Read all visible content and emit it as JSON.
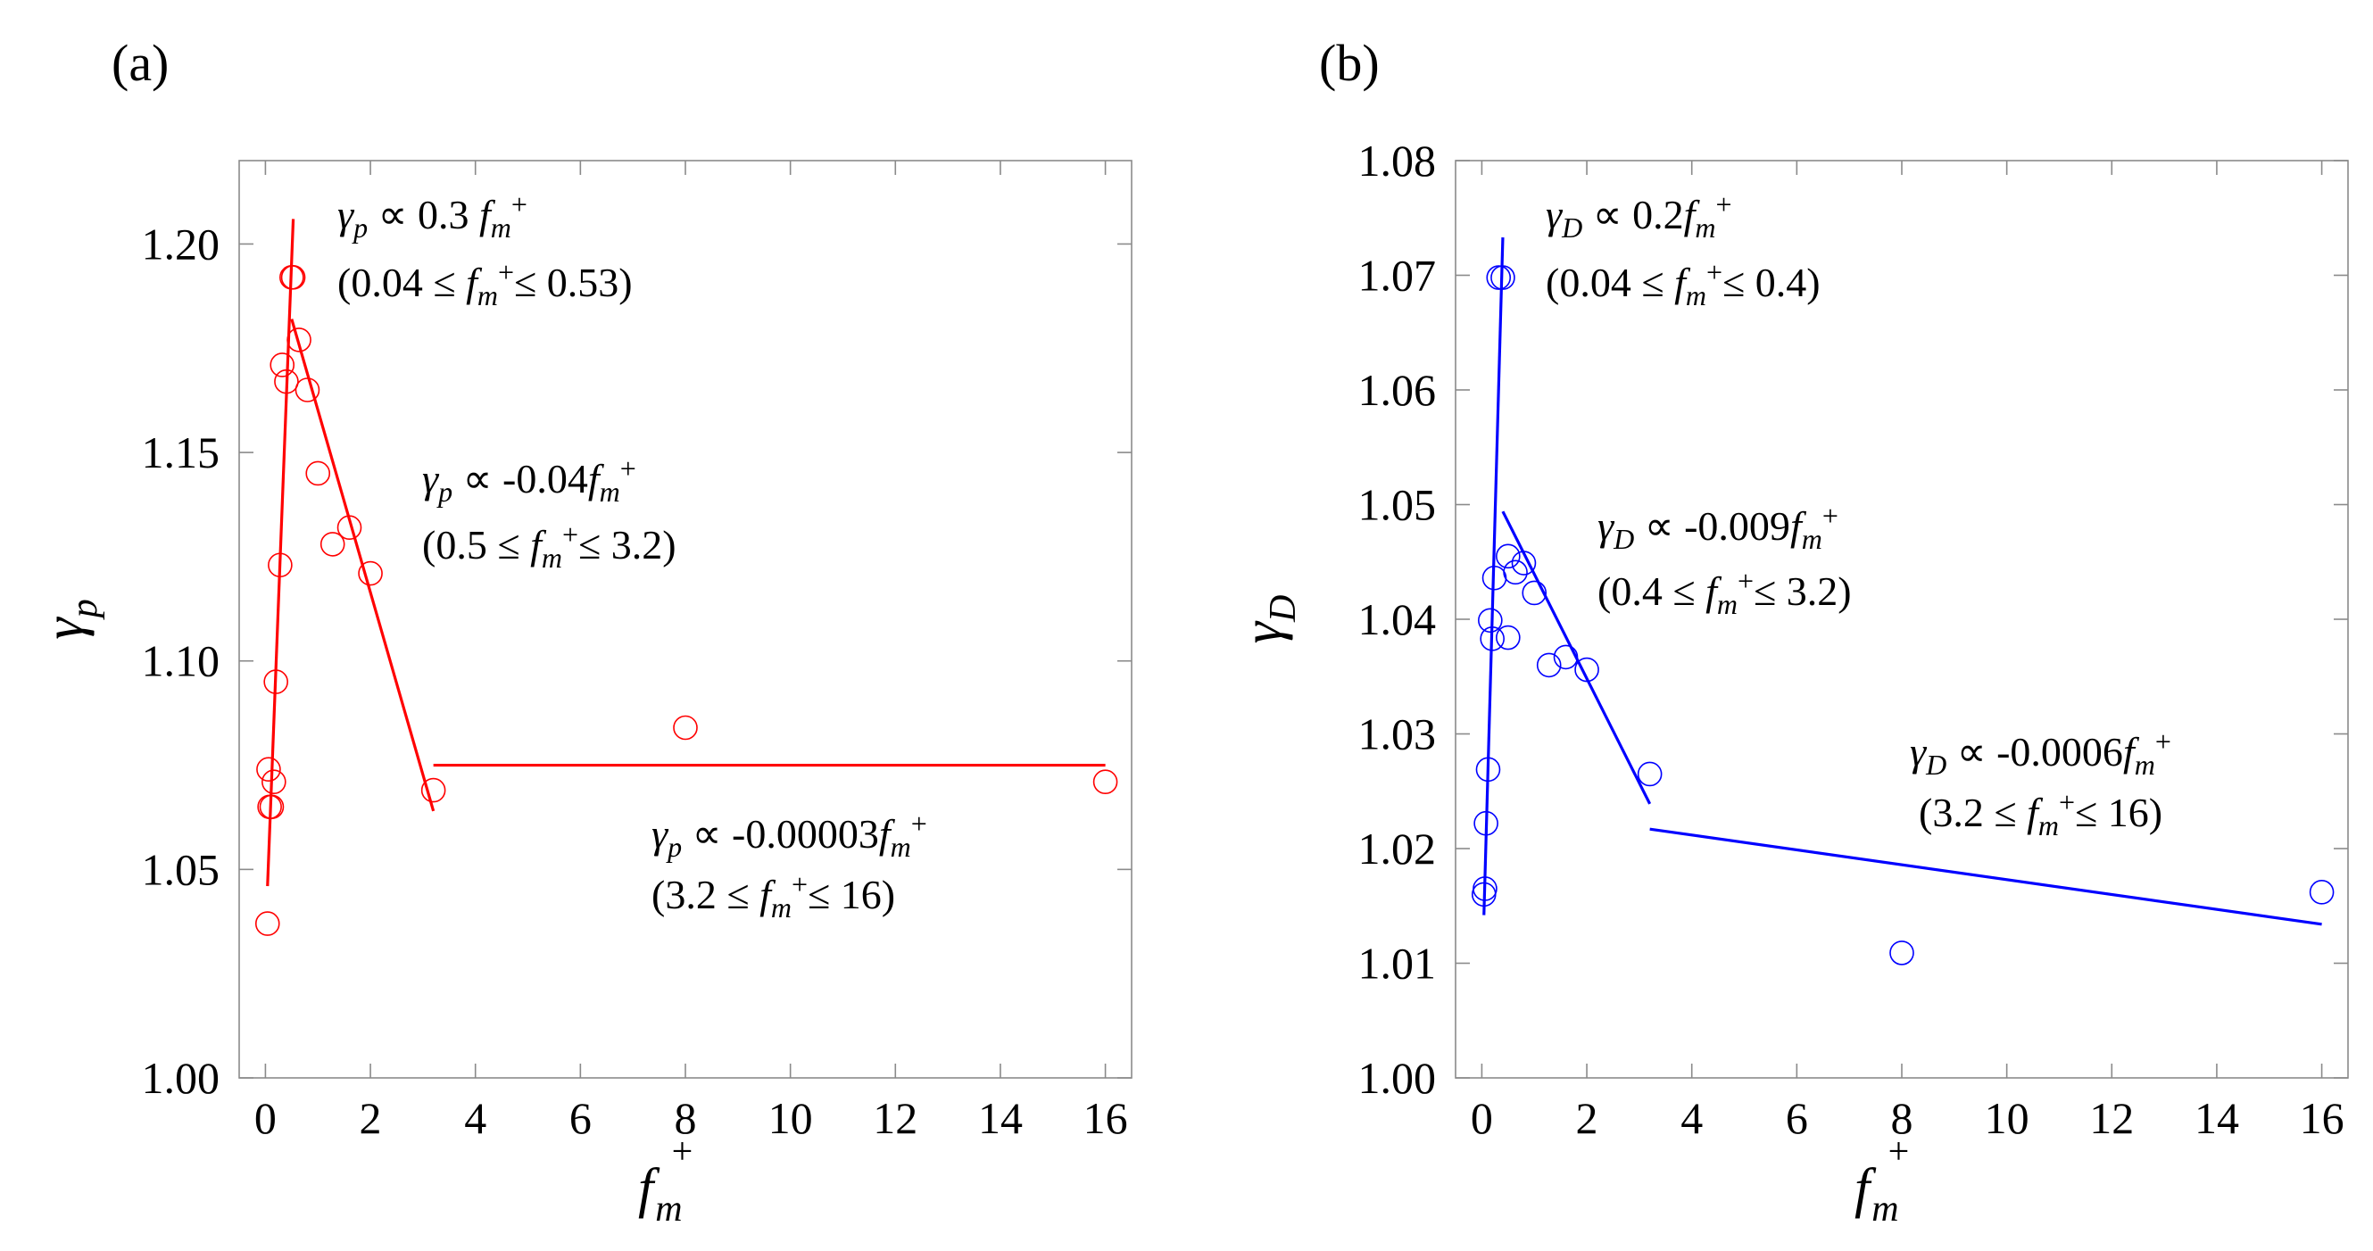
{
  "chart_data": [
    {
      "type": "scatter",
      "panel_label": "(a)",
      "color": "#ff0000",
      "xlabel": "f_m^+",
      "ylabel": "γ_p",
      "xlim": [
        -0.5,
        16.5
      ],
      "ylim": [
        1.0,
        1.22
      ],
      "xticks": [
        0,
        2,
        4,
        6,
        8,
        10,
        12,
        14,
        16
      ],
      "yticks": [
        1.0,
        1.05,
        1.1,
        1.15,
        1.2
      ],
      "ytick_labels": [
        "1.00",
        "1.05",
        "1.10",
        "1.15",
        "1.20"
      ],
      "points": [
        {
          "x": 0.04,
          "y": 1.037
        },
        {
          "x": 0.06,
          "y": 1.074
        },
        {
          "x": 0.08,
          "y": 1.065
        },
        {
          "x": 0.12,
          "y": 1.065
        },
        {
          "x": 0.16,
          "y": 1.071
        },
        {
          "x": 0.2,
          "y": 1.095
        },
        {
          "x": 0.28,
          "y": 1.123
        },
        {
          "x": 0.32,
          "y": 1.171
        },
        {
          "x": 0.4,
          "y": 1.167
        },
        {
          "x": 0.5,
          "y": 1.192
        },
        {
          "x": 0.53,
          "y": 1.192
        },
        {
          "x": 0.64,
          "y": 1.177
        },
        {
          "x": 0.8,
          "y": 1.165
        },
        {
          "x": 1.0,
          "y": 1.145
        },
        {
          "x": 1.28,
          "y": 1.128
        },
        {
          "x": 1.6,
          "y": 1.132
        },
        {
          "x": 2.0,
          "y": 1.121
        },
        {
          "x": 3.2,
          "y": 1.069
        },
        {
          "x": 8.0,
          "y": 1.084
        },
        {
          "x": 16.0,
          "y": 1.071
        }
      ],
      "fit_lines": [
        {
          "x": [
            0.04,
            0.53
          ],
          "y": [
            1.046,
            1.206
          ]
        },
        {
          "x": [
            0.5,
            3.2
          ],
          "y": [
            1.182,
            1.064
          ]
        },
        {
          "x": [
            3.2,
            16.0
          ],
          "y": [
            1.075,
            1.075
          ]
        }
      ],
      "annotations": [
        {
          "formula": "γp ∝ 0.3fm+",
          "range": "(0.04 ≤ fm+ ≤ 0.53)"
        },
        {
          "formula": "γp ∝ -0.04fm+",
          "range": "(0.5 ≤ fm+ ≤ 3.2)"
        },
        {
          "formula": "γp ∝ -0.00003fm+",
          "range": "(3.2 ≤ fm+ ≤ 16)"
        }
      ]
    },
    {
      "type": "scatter",
      "panel_label": "(b)",
      "color": "#0000ff",
      "xlabel": "f_m^+",
      "ylabel": "γ_D",
      "xlim": [
        -0.5,
        16.5
      ],
      "ylim": [
        1.0,
        1.08
      ],
      "xticks": [
        0,
        2,
        4,
        6,
        8,
        10,
        12,
        14,
        16
      ],
      "yticks": [
        1.0,
        1.01,
        1.02,
        1.03,
        1.04,
        1.05,
        1.06,
        1.07,
        1.08
      ],
      "ytick_labels": [
        "1.00",
        "1.01",
        "1.02",
        "1.03",
        "1.04",
        "1.05",
        "1.06",
        "1.07",
        "1.08"
      ],
      "points": [
        {
          "x": 0.04,
          "y": 1.016
        },
        {
          "x": 0.06,
          "y": 1.0165
        },
        {
          "x": 0.08,
          "y": 1.0222
        },
        {
          "x": 0.12,
          "y": 1.0269
        },
        {
          "x": 0.16,
          "y": 1.0399
        },
        {
          "x": 0.2,
          "y": 1.0383
        },
        {
          "x": 0.24,
          "y": 1.0436
        },
        {
          "x": 0.32,
          "y": 1.0698
        },
        {
          "x": 0.4,
          "y": 1.0698
        },
        {
          "x": 0.5,
          "y": 1.0384
        },
        {
          "x": 0.5,
          "y": 1.0455
        },
        {
          "x": 0.64,
          "y": 1.0441
        },
        {
          "x": 0.8,
          "y": 1.0449
        },
        {
          "x": 1.0,
          "y": 1.0423
        },
        {
          "x": 1.28,
          "y": 1.036
        },
        {
          "x": 1.6,
          "y": 1.0367
        },
        {
          "x": 2.0,
          "y": 1.0356
        },
        {
          "x": 3.2,
          "y": 1.0265
        },
        {
          "x": 8.0,
          "y": 1.0109
        },
        {
          "x": 16.0,
          "y": 1.0162
        }
      ],
      "fit_lines": [
        {
          "x": [
            0.04,
            0.4
          ],
          "y": [
            1.0142,
            1.0733
          ]
        },
        {
          "x": [
            0.4,
            3.2
          ],
          "y": [
            1.0494,
            1.0239
          ]
        },
        {
          "x": [
            3.2,
            16.0
          ],
          "y": [
            1.0217,
            1.0134
          ]
        }
      ],
      "annotations": [
        {
          "formula": "γD ∝ 0.2fm+",
          "range": "(0.04 ≤ fm+ ≤ 0.4)"
        },
        {
          "formula": "γD ∝ -0.009fm+",
          "range": "(0.4 ≤ fm+ ≤ 3.2)"
        },
        {
          "formula": "γD ∝ -0.0006fm+",
          "range": "(3.2 ≤ fm+ ≤ 16)"
        }
      ]
    }
  ]
}
